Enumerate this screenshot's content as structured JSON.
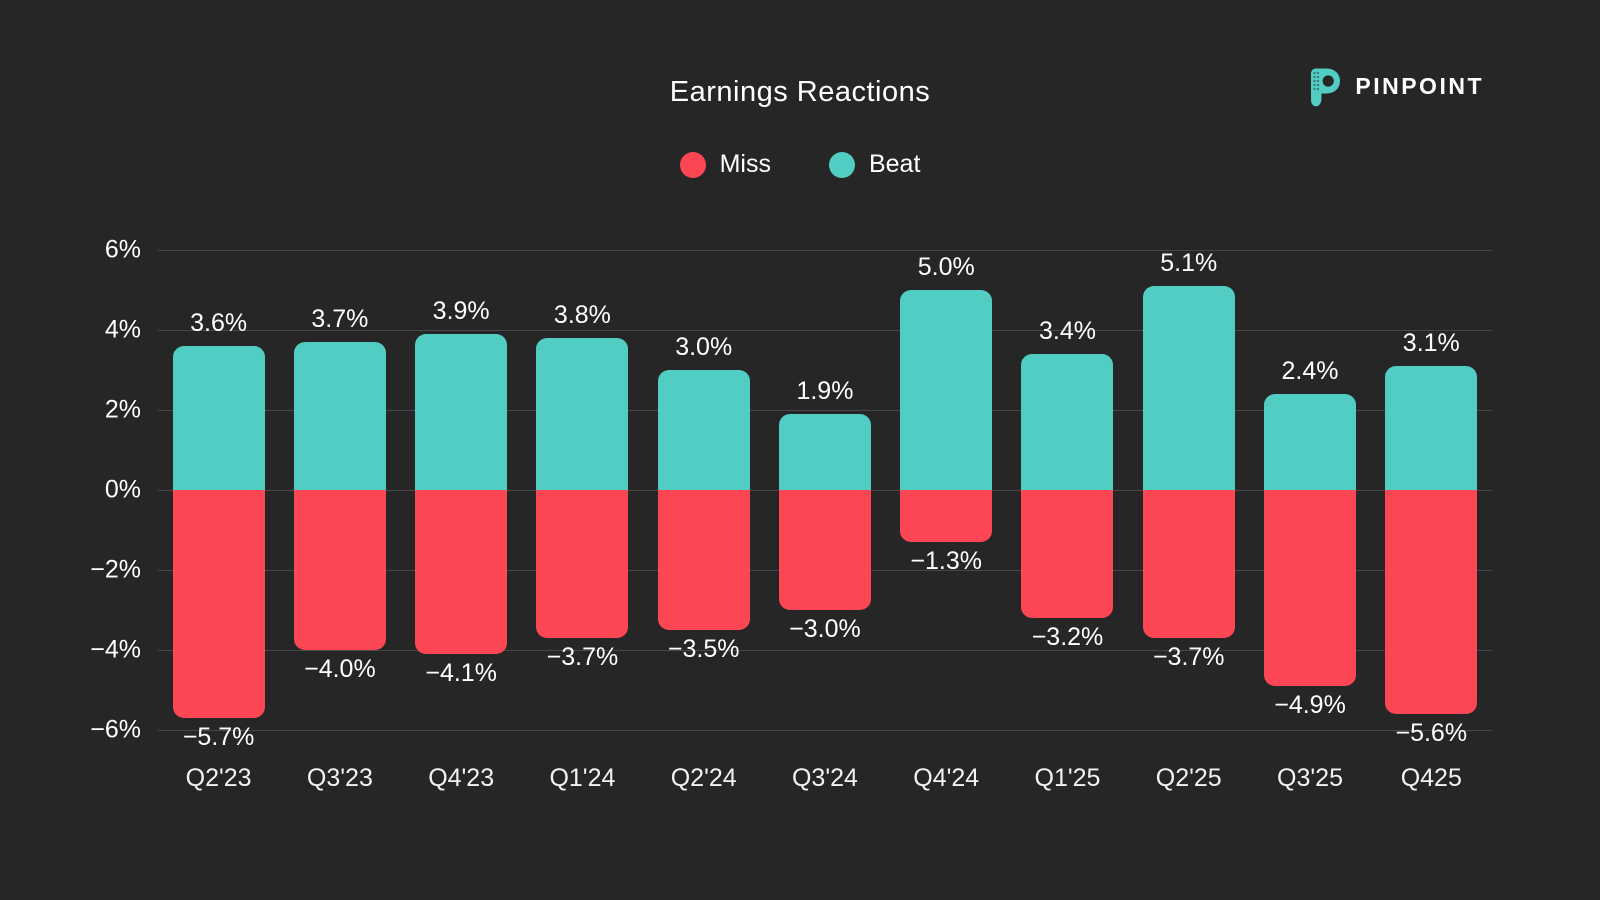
{
  "header": {
    "title": "Earnings Reactions"
  },
  "logo": {
    "name": "PINPOINT",
    "icon": "pinpoint-p-icon",
    "icon_color": "#51CDC4"
  },
  "legend": {
    "items": [
      {
        "label": "Miss",
        "color": "#FC4653"
      },
      {
        "label": "Beat",
        "color": "#51CDC4"
      }
    ]
  },
  "colors": {
    "background": "#262626",
    "grid": "#47474a",
    "text": "#ffffff",
    "beat": "#51CDC4",
    "miss": "#FC4653"
  },
  "chart_data": {
    "type": "bar",
    "stacked": true,
    "title": "Earnings Reactions",
    "xlabel": "",
    "ylabel": "",
    "grid": true,
    "legend_position": "top-center",
    "categories": [
      "Q2'23",
      "Q3'23",
      "Q4'23",
      "Q1'24",
      "Q2'24",
      "Q3'24",
      "Q4'24",
      "Q1'25",
      "Q2'25",
      "Q3'25",
      "Q425"
    ],
    "series": [
      {
        "name": "Beat",
        "color": "#51CDC4",
        "values": [
          3.6,
          3.7,
          3.9,
          3.8,
          3.0,
          1.9,
          5.0,
          3.4,
          5.1,
          2.4,
          3.1
        ],
        "labels": [
          "3.6%",
          "3.7%",
          "3.9%",
          "3.8%",
          "3.0%",
          "1.9%",
          "5.0%",
          "3.4%",
          "5.1%",
          "2.4%",
          "3.1%"
        ]
      },
      {
        "name": "Miss",
        "color": "#FC4653",
        "values": [
          -5.7,
          -4.0,
          -4.1,
          -3.7,
          -3.5,
          -3.0,
          -1.3,
          -3.2,
          -3.7,
          -4.9,
          -5.6
        ],
        "labels": [
          "−5.7%",
          "−4.0%",
          "−4.1%",
          "−3.7%",
          "−3.5%",
          "−3.0%",
          "−1.3%",
          "−3.2%",
          "−3.7%",
          "−4.9%",
          "−5.6%"
        ]
      }
    ],
    "y_axis": {
      "min": -6,
      "max": 6,
      "ticks": [
        {
          "value": 6,
          "label": "6%"
        },
        {
          "value": 4,
          "label": "4%"
        },
        {
          "value": 2,
          "label": "2%"
        },
        {
          "value": 0,
          "label": "0%"
        },
        {
          "value": -2,
          "label": "−2%"
        },
        {
          "value": -4,
          "label": "−4%"
        },
        {
          "value": -6,
          "label": "−6%"
        }
      ]
    }
  }
}
